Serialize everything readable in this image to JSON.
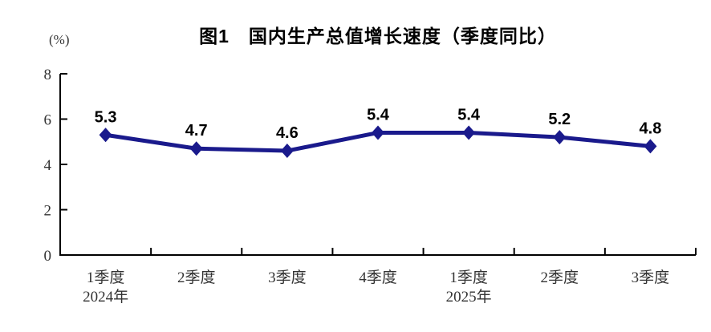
{
  "chart_data": {
    "type": "line",
    "title": "图1　国内生产总值增长速度（季度同比）",
    "ylabel": "(%)",
    "categories": [
      "1季度",
      "2季度",
      "3季度",
      "4季度",
      "1季度",
      "2季度",
      "3季度"
    ],
    "year_labels": [
      {
        "category_index": 0,
        "label": "2024年"
      },
      {
        "category_index": 4,
        "label": "2025年"
      }
    ],
    "values": [
      5.3,
      4.7,
      4.6,
      5.4,
      5.4,
      5.2,
      4.8
    ],
    "data_labels": [
      "5.3",
      "4.7",
      "4.6",
      "5.4",
      "5.4",
      "5.2",
      "4.8"
    ],
    "yticks": [
      0,
      2,
      4,
      6,
      8
    ],
    "ylim": [
      0,
      8
    ],
    "grid": false,
    "legend": "none",
    "line_color": "#1a1a8c",
    "marker": "diamond",
    "axis_color": "#000000",
    "tick_label_color": "#333333",
    "data_label_color": "#000000"
  }
}
